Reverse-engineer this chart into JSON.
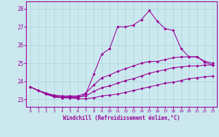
{
  "xlabel": "Windchill (Refroidissement éolien,°C)",
  "background_color": "#cbe8ef",
  "line_color": "#990099",
  "grid_color": "#b0d8df",
  "xmin": -0.5,
  "xmax": 23.5,
  "ymin": 22.6,
  "ymax": 28.4,
  "yticks": [
    23,
    24,
    25,
    26,
    27,
    28
  ],
  "xticks": [
    0,
    1,
    2,
    3,
    4,
    5,
    6,
    7,
    8,
    9,
    10,
    11,
    12,
    13,
    14,
    15,
    16,
    17,
    18,
    19,
    20,
    21,
    22,
    23
  ],
  "lines": [
    {
      "x": [
        0,
        1,
        2,
        3,
        4,
        5,
        6,
        7,
        8,
        9,
        10,
        11,
        12,
        13,
        14,
        15,
        16,
        17,
        18,
        19,
        20,
        21,
        22,
        23
      ],
      "y": [
        23.7,
        23.5,
        23.3,
        23.15,
        23.1,
        23.1,
        23.1,
        23.3,
        24.4,
        25.5,
        25.8,
        27.0,
        27.0,
        27.1,
        27.4,
        27.9,
        27.3,
        26.9,
        26.8,
        25.8,
        25.35,
        25.35,
        25.05,
        24.9
      ]
    },
    {
      "x": [
        0,
        1,
        2,
        3,
        4,
        5,
        6,
        7,
        8,
        9,
        10,
        11,
        12,
        13,
        14,
        15,
        16,
        17,
        18,
        19,
        20,
        21,
        22,
        23
      ],
      "y": [
        23.7,
        23.5,
        23.35,
        23.25,
        23.2,
        23.2,
        23.2,
        23.35,
        23.8,
        24.2,
        24.35,
        24.55,
        24.7,
        24.85,
        25.0,
        25.1,
        25.1,
        25.2,
        25.3,
        25.35,
        25.35,
        25.35,
        25.1,
        25.0
      ]
    },
    {
      "x": [
        0,
        1,
        2,
        3,
        4,
        5,
        6,
        7,
        8,
        9,
        10,
        11,
        12,
        13,
        14,
        15,
        16,
        17,
        18,
        19,
        20,
        21,
        22,
        23
      ],
      "y": [
        23.7,
        23.5,
        23.35,
        23.2,
        23.15,
        23.15,
        23.15,
        23.2,
        23.45,
        23.65,
        23.75,
        23.9,
        24.05,
        24.15,
        24.3,
        24.45,
        24.55,
        24.65,
        24.75,
        24.8,
        24.85,
        24.85,
        24.9,
        24.9
      ]
    },
    {
      "x": [
        0,
        1,
        2,
        3,
        4,
        5,
        6,
        7,
        8,
        9,
        10,
        11,
        12,
        13,
        14,
        15,
        16,
        17,
        18,
        19,
        20,
        21,
        22,
        23
      ],
      "y": [
        23.7,
        23.5,
        23.3,
        23.15,
        23.1,
        23.1,
        23.05,
        23.05,
        23.1,
        23.2,
        23.25,
        23.3,
        23.4,
        23.5,
        23.6,
        23.7,
        23.8,
        23.9,
        23.95,
        24.05,
        24.15,
        24.2,
        24.25,
        24.3
      ]
    }
  ]
}
